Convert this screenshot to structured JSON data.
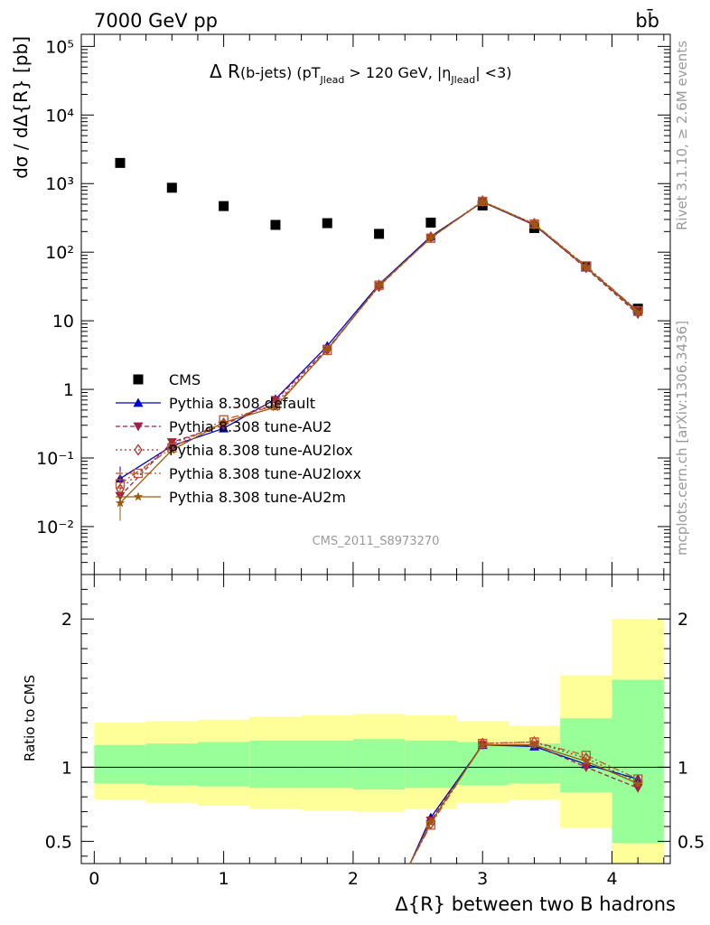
{
  "header": {
    "energy_label": "7000 GeV pp",
    "process_label": "bb̄"
  },
  "side_labels": {
    "rivet": "Rivet 3.1.10, ≥ 2.6M events",
    "mcplots": "mcplots.cern.ch [arXiv:1306.3436]"
  },
  "analysis_id": "CMS_2011_S8973270",
  "chart_data": [
    {
      "type": "scatter",
      "panel": "main",
      "title": "Δ R(b-jets) (pT_Jlead > 120 GeV, |η_Jlead| <3)",
      "ylabel": "dσ / dΔ{R} [pb]",
      "xlabel": "",
      "yscale": "log",
      "xlim": [
        -0.1,
        4.45
      ],
      "ylim": [
        0.002,
        150000
      ],
      "y_ticks": [
        {
          "value": 0.01,
          "label": "10⁻²"
        },
        {
          "value": 0.1,
          "label": "10⁻¹"
        },
        {
          "value": 1,
          "label": "1"
        },
        {
          "value": 10,
          "label": "10"
        },
        {
          "value": 100,
          "label": "10²"
        },
        {
          "value": 1000,
          "label": "10³"
        },
        {
          "value": 10000,
          "label": "10⁴"
        },
        {
          "value": 100000,
          "label": "10⁵"
        }
      ],
      "legend_position": "bottom-left",
      "series": [
        {
          "name": "CMS",
          "color": "#000000",
          "marker": "square",
          "x": [
            0.2,
            0.6,
            1.0,
            1.4,
            1.8,
            2.2,
            2.6,
            3.0,
            3.4,
            3.8,
            4.2
          ],
          "y": [
            2000,
            870,
            470,
            250,
            265,
            185,
            270,
            480,
            225,
            62,
            15
          ]
        },
        {
          "name": "Pythia 8.308 default",
          "color": "#0000cc",
          "marker": "triangle-up",
          "dash": "",
          "x": [
            0.2,
            0.6,
            1.0,
            1.4,
            1.8,
            2.2,
            2.6,
            3.0,
            3.4,
            3.8,
            4.2
          ],
          "y": [
            0.05,
            0.15,
            0.27,
            0.72,
            4.3,
            34,
            170,
            540,
            248,
            60,
            13.5
          ]
        },
        {
          "name": "Pythia 8.308 tune-AU2",
          "color": "#a0204a",
          "marker": "triangle-down",
          "dash": "5,3",
          "x": [
            0.2,
            0.6,
            1.0,
            1.4,
            1.8,
            2.2,
            2.6,
            3.0,
            3.4,
            3.8,
            4.2
          ],
          "y": [
            0.028,
            0.17,
            0.3,
            0.7,
            3.9,
            32,
            163,
            540,
            250,
            58,
            12.5
          ]
        },
        {
          "name": "Pythia 8.308 tune-AU2lox",
          "color": "#b03028",
          "marker": "diamond-open",
          "dash": "2,3",
          "x": [
            0.2,
            0.6,
            1.0,
            1.4,
            1.8,
            2.2,
            2.6,
            3.0,
            3.4,
            3.8,
            4.2
          ],
          "y": [
            0.035,
            0.16,
            0.32,
            0.62,
            3.8,
            32,
            165,
            555,
            260,
            61,
            13.8
          ]
        },
        {
          "name": "Pythia 8.308 tune-AU2loxx",
          "color": "#c0542a",
          "marker": "square-open",
          "dash": "8,3,2,3",
          "x": [
            0.2,
            0.6,
            1.0,
            1.4,
            1.8,
            2.2,
            2.6,
            3.0,
            3.4,
            3.8,
            4.2
          ],
          "y": [
            0.042,
            0.14,
            0.36,
            0.58,
            3.7,
            33,
            160,
            550,
            258,
            63,
            13.9
          ]
        },
        {
          "name": "Pythia 8.308 tune-AU2m",
          "color": "#9a5a10",
          "marker": "star",
          "dash": "",
          "x": [
            0.2,
            0.6,
            1.0,
            1.4,
            1.8,
            2.2,
            2.6,
            3.0,
            3.4,
            3.8,
            4.2
          ],
          "y": [
            0.022,
            0.13,
            0.33,
            0.55,
            3.8,
            33,
            162,
            545,
            255,
            60,
            13.2
          ]
        }
      ]
    },
    {
      "type": "scatter",
      "panel": "ratio",
      "ylabel": "Ratio to CMS",
      "xlabel": "Δ{R} between two B hadrons",
      "xlim": [
        -0.1,
        4.45
      ],
      "ylim": [
        0.35,
        2.3
      ],
      "x_ticks": [
        0,
        1,
        2,
        3,
        4
      ],
      "y_ticks": [
        0.5,
        1,
        2
      ],
      "reference_line": 1,
      "bands": {
        "edges": [
          0,
          0.4,
          0.8,
          1.2,
          1.6,
          2.0,
          2.4,
          2.8,
          3.2,
          3.6,
          4.0,
          4.4
        ],
        "yellow_low": [
          0.78,
          0.76,
          0.74,
          0.72,
          0.71,
          0.7,
          0.72,
          0.76,
          0.78,
          0.59,
          0.35
        ],
        "yellow_high": [
          1.3,
          1.31,
          1.32,
          1.34,
          1.35,
          1.36,
          1.35,
          1.31,
          1.28,
          1.62,
          2.0
        ],
        "green_low": [
          0.89,
          0.88,
          0.87,
          0.86,
          0.86,
          0.85,
          0.86,
          0.88,
          0.89,
          0.83,
          0.49
        ],
        "green_high": [
          1.15,
          1.16,
          1.17,
          1.18,
          1.18,
          1.19,
          1.18,
          1.17,
          1.16,
          1.33,
          1.59
        ]
      },
      "series": [
        {
          "name": "Pythia 8.308 default",
          "x": [
            2.44,
            2.6,
            3.0,
            3.4,
            3.8,
            4.2
          ],
          "y": [
            0.35,
            0.66,
            1.15,
            1.14,
            1.02,
            0.92
          ]
        },
        {
          "name": "Pythia 8.308 tune-AU2",
          "x": [
            2.44,
            2.6,
            3.0,
            3.4,
            3.8,
            4.2
          ],
          "y": [
            0.35,
            0.64,
            1.15,
            1.15,
            1.0,
            0.86
          ]
        },
        {
          "name": "Pythia 8.308 tune-AU2lox",
          "x": [
            2.44,
            2.6,
            3.0,
            3.4,
            3.8,
            4.2
          ],
          "y": [
            0.35,
            0.62,
            1.16,
            1.17,
            1.06,
            0.9
          ]
        },
        {
          "name": "Pythia 8.308 tune-AU2loxx",
          "x": [
            2.44,
            2.6,
            3.0,
            3.4,
            3.8,
            4.2
          ],
          "y": [
            0.35,
            0.61,
            1.16,
            1.17,
            1.08,
            0.92
          ]
        },
        {
          "name": "Pythia 8.308 tune-AU2m",
          "x": [
            2.44,
            2.6,
            3.0,
            3.4,
            3.8,
            4.2
          ],
          "y": [
            0.35,
            0.63,
            1.15,
            1.15,
            1.04,
            0.89
          ]
        }
      ]
    }
  ]
}
